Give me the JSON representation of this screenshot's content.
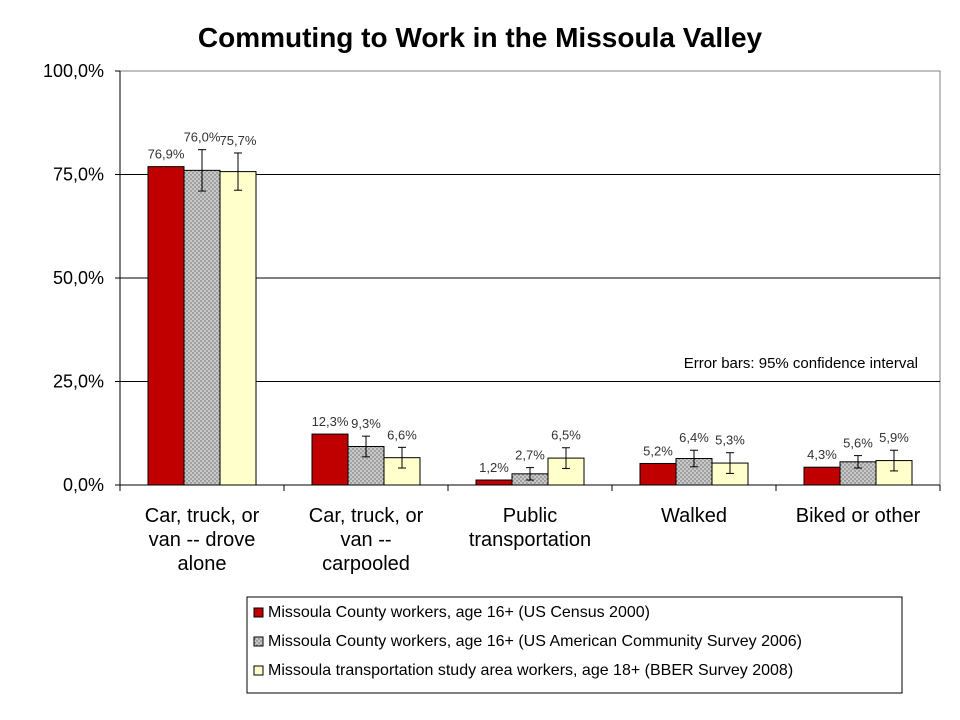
{
  "chart_data": {
    "type": "bar",
    "title": "Commuting to Work in the Missoula Valley",
    "xlabel": "",
    "ylabel": "",
    "ylim": [
      0,
      100
    ],
    "yticks": [
      0,
      25,
      50,
      75,
      100
    ],
    "ytick_labels": [
      "0,0%",
      "25,0%",
      "50,0%",
      "75,0%",
      "100,0%"
    ],
    "grid": true,
    "legend_position": "bottom-right",
    "categories": [
      [
        "Car, truck, or",
        "van -- drove",
        "alone"
      ],
      [
        "Car, truck, or",
        "van --",
        "carpooled"
      ],
      [
        "Public",
        "transportation"
      ],
      [
        "Walked"
      ],
      [
        "Biked or other"
      ]
    ],
    "series": [
      {
        "name": "Missoula County workers, age 16+ (US Census 2000)",
        "color": "#c00000",
        "pattern": "solid",
        "values": [
          76.9,
          12.3,
          1.2,
          5.2,
          4.3
        ],
        "labels": [
          "76,9%",
          "12,3%",
          "1,2%",
          "5,2%",
          "4,3%"
        ],
        "error": null
      },
      {
        "name": "Missoula County workers, age 16+ (US American Community Survey 2006)",
        "color": "#c0c0c0",
        "pattern": "dotted",
        "values": [
          76.0,
          9.3,
          2.7,
          6.4,
          5.6
        ],
        "labels": [
          "76,0%",
          "9,3%",
          "2,7%",
          "6,4%",
          "5,6%"
        ],
        "error": [
          5.0,
          2.5,
          1.5,
          2.0,
          1.5
        ]
      },
      {
        "name": "Missoula transportation study area workers, age 18+ (BBER Survey 2008)",
        "color": "#ffffcc",
        "pattern": "solid",
        "values": [
          75.7,
          6.6,
          6.5,
          5.3,
          5.9
        ],
        "labels": [
          "75,7%",
          "6,6%",
          "6,5%",
          "5,3%",
          "5,9%"
        ],
        "error": [
          4.5,
          2.5,
          2.5,
          2.5,
          2.5
        ]
      }
    ],
    "annotation": "Error bars: 95% confidence interval"
  }
}
